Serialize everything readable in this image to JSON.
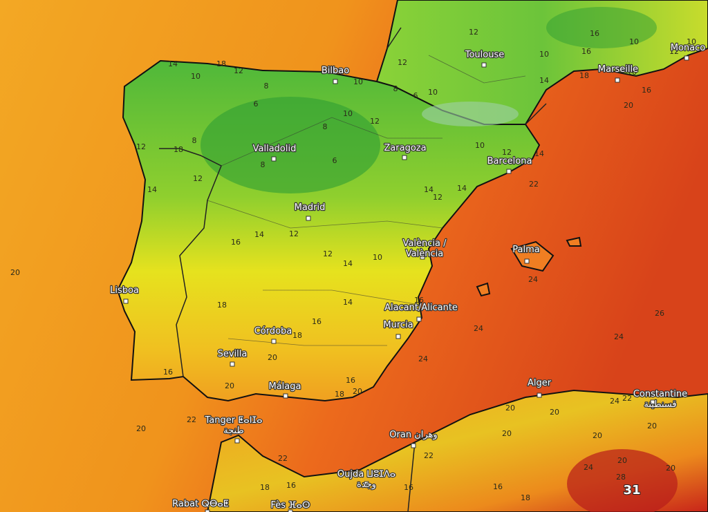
{
  "cities": [
    {
      "name": "Toulouse"
    },
    {
      "name": "Marseille"
    },
    {
      "name": "Monaco"
    },
    {
      "name": "Bilbao"
    },
    {
      "name": "Zaragoza"
    },
    {
      "name": "Barcelona"
    },
    {
      "name": "Valladolid"
    },
    {
      "name": "Madrid"
    },
    {
      "name": "València /",
      "name_line2": "València"
    },
    {
      "name": "Palma"
    },
    {
      "name": "Lisboa"
    },
    {
      "name": "Alacant/Alicante"
    },
    {
      "name": "Murcia"
    },
    {
      "name": "Córdoba"
    },
    {
      "name": "Sevilla"
    },
    {
      "name": "Málaga"
    },
    {
      "name": "Alger"
    },
    {
      "name": "Constantine",
      "name_line2": "قسنطينة"
    },
    {
      "name": "Tanger ⵟⴰⵏⵊⴰ",
      "name_line2": "طنجة"
    },
    {
      "name": "Oran وهران"
    },
    {
      "name": "Oujda ⵡⵓⵊⴷⴰ",
      "name_line2": "وجدة"
    },
    {
      "name": "Rabat ⵕⴱⴰⵟ"
    },
    {
      "name": "Fès ⴼⴰⵙ"
    }
  ],
  "isotherm_labels": [
    14,
    18,
    12,
    10,
    8,
    10,
    12,
    8,
    6,
    10,
    12,
    10,
    16,
    16,
    10,
    10,
    12,
    18,
    14,
    16,
    16,
    20,
    6,
    8,
    10,
    12,
    8,
    18,
    12,
    14,
    12,
    8,
    6,
    10,
    12,
    14,
    22,
    14,
    12,
    14,
    16,
    14,
    12,
    12,
    14,
    10,
    20,
    18,
    16,
    14,
    16,
    18,
    24,
    24,
    26,
    24,
    20,
    16,
    20,
    16,
    20,
    18,
    24,
    22,
    20,
    22,
    20,
    20,
    24,
    22,
    20,
    20,
    20,
    22,
    24,
    20,
    20,
    16,
    16,
    18,
    16,
    18,
    28,
    31
  ]
}
